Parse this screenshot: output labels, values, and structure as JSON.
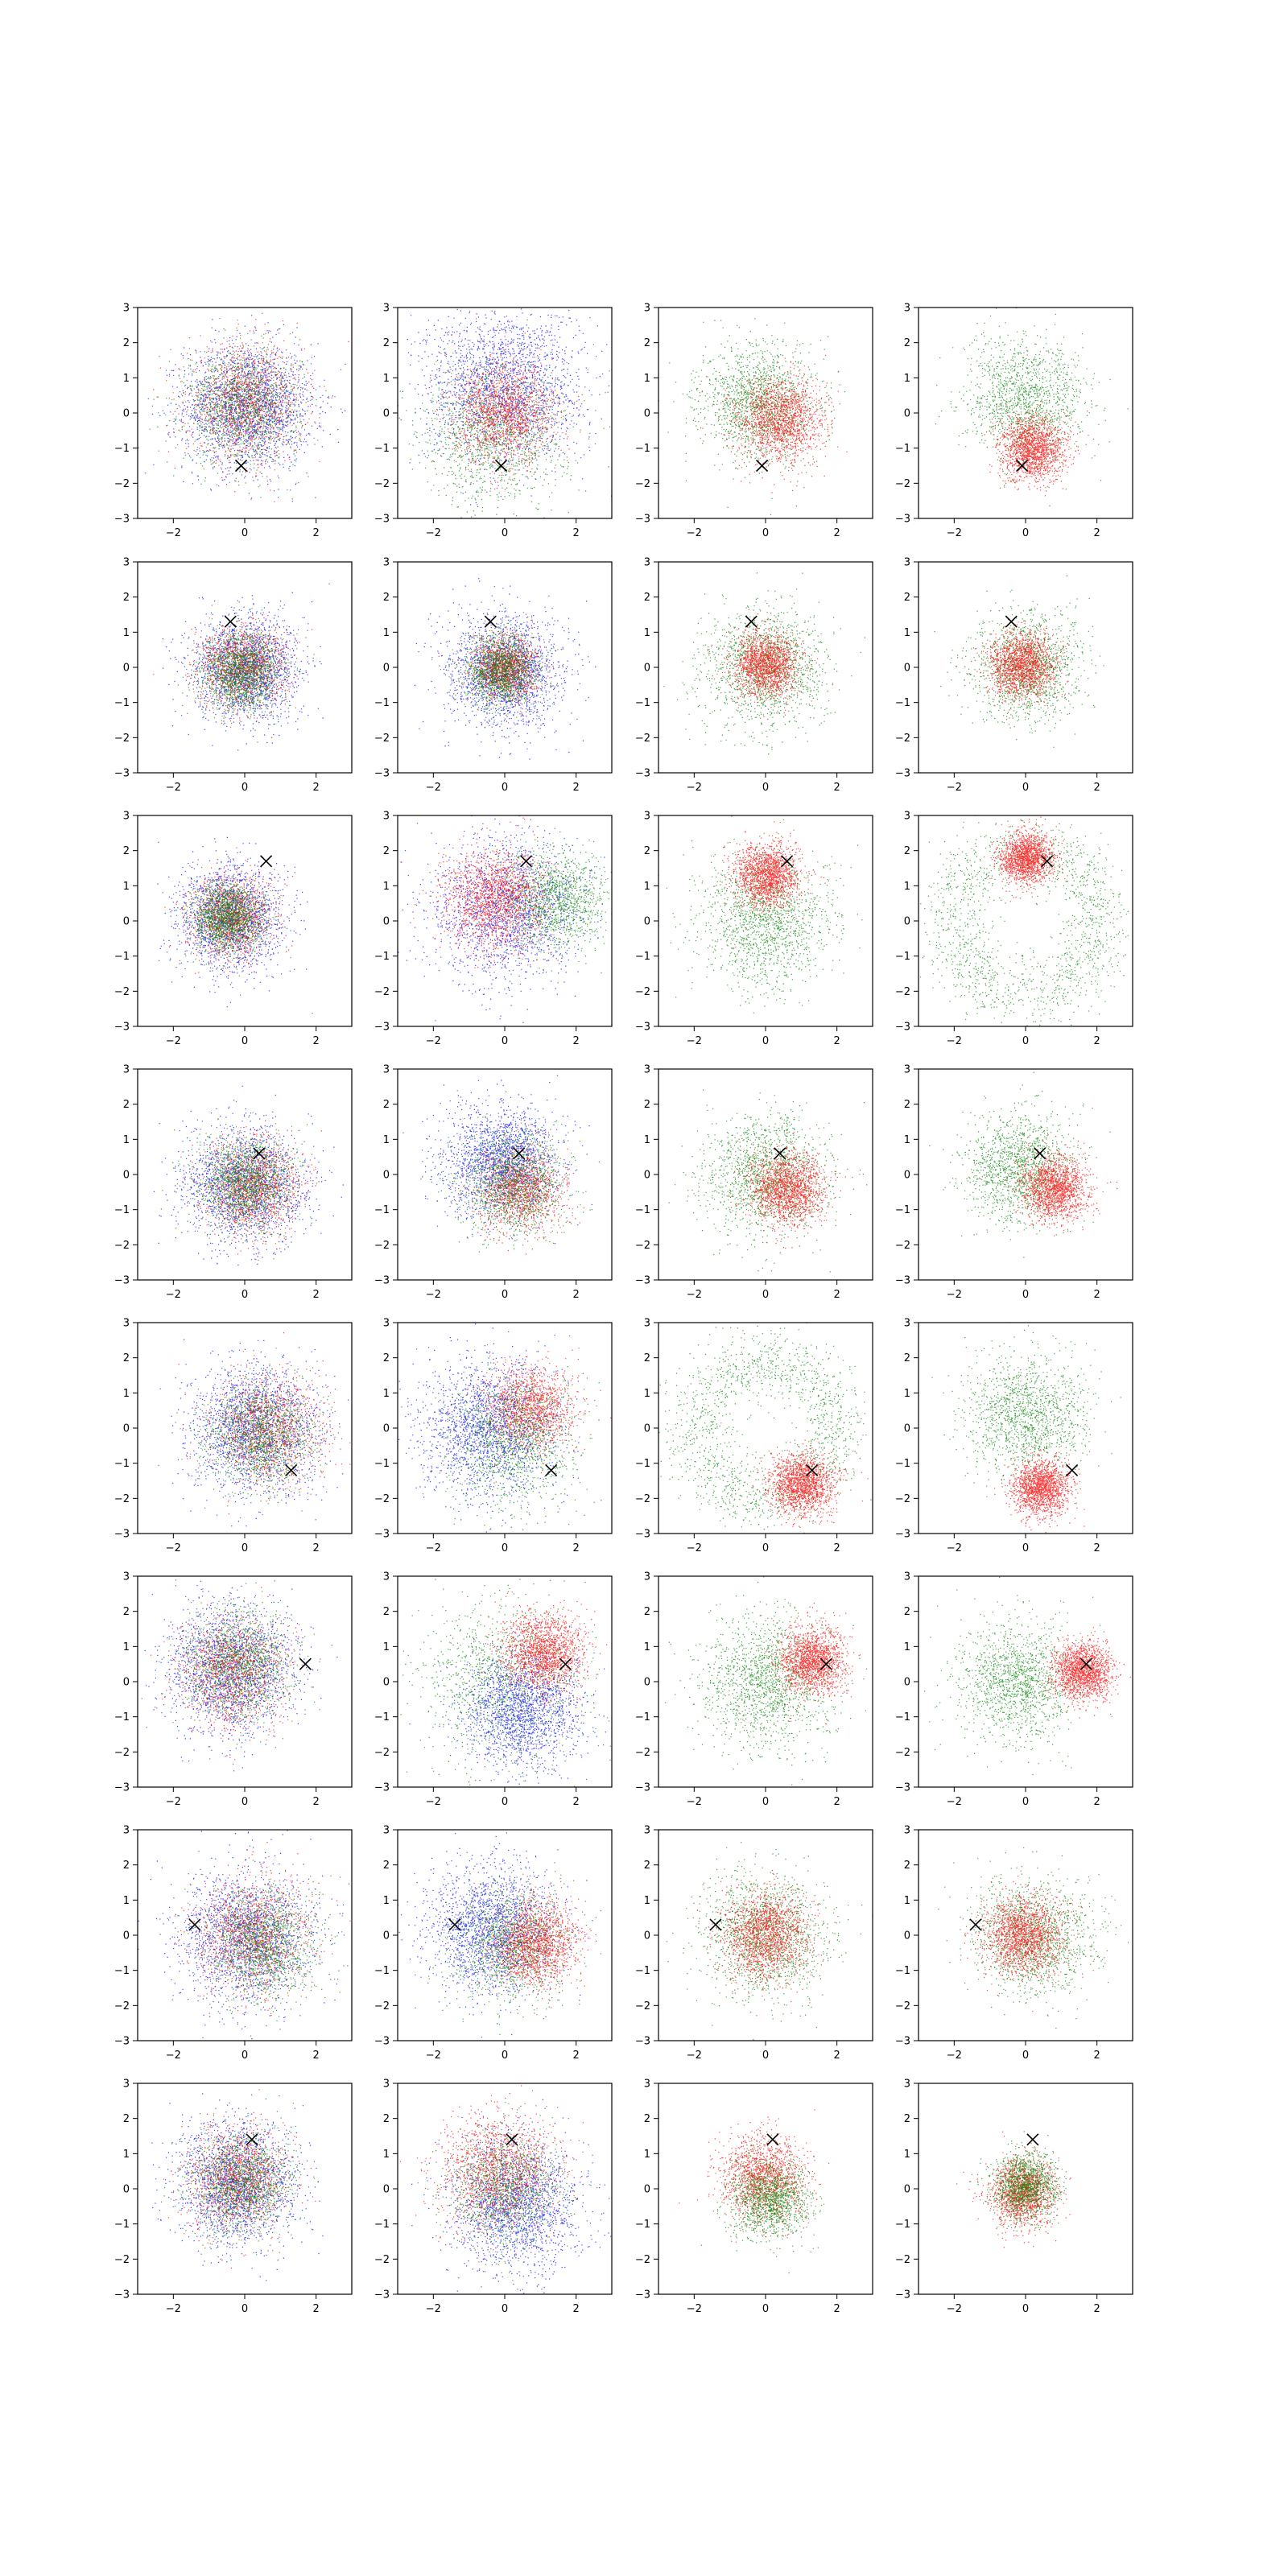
{
  "chart_data": {
    "type": "scatter",
    "layout": {
      "rows": 8,
      "cols": 4
    },
    "xlim": [
      -3,
      3
    ],
    "ylim": [
      -3,
      3
    ],
    "xticks": [
      -2,
      0,
      2
    ],
    "yticks": [
      -3,
      -2,
      -1,
      0,
      1,
      2,
      3
    ],
    "grid": false,
    "legend": "none",
    "colors": {
      "blue": "#0000ff",
      "red": "#ff0000",
      "green": "#008000",
      "marker": "#000000"
    },
    "rows": [
      {
        "marker": [
          -0.1,
          -1.5
        ],
        "panels": [
          {
            "clusters": [
              {
                "color": "blue",
                "cx": 0.1,
                "cy": 0.2,
                "spread": 0.9,
                "n": 2000
              },
              {
                "color": "red",
                "cx": 0.0,
                "cy": 0.3,
                "spread": 0.8,
                "n": 1400
              },
              {
                "color": "green",
                "cx": -0.1,
                "cy": 0.2,
                "spread": 0.8,
                "n": 1400
              }
            ]
          },
          {
            "clusters": [
              {
                "color": "blue",
                "cx": 0.0,
                "cy": 0.8,
                "spread": 1.1,
                "n": 2000
              },
              {
                "color": "green",
                "cx": -0.3,
                "cy": -0.5,
                "spread": 1.0,
                "n": 1400
              },
              {
                "color": "red",
                "cx": 0.0,
                "cy": 0.0,
                "spread": 0.7,
                "n": 1500
              }
            ]
          },
          {
            "clusters": [
              {
                "color": "green",
                "cx": -0.2,
                "cy": 0.3,
                "spread": 0.8,
                "n": 1500
              },
              {
                "color": "red",
                "cx": 0.4,
                "cy": -0.2,
                "spread": 0.6,
                "n": 1600
              }
            ]
          },
          {
            "clusters": [
              {
                "color": "green",
                "cx": 0.0,
                "cy": 0.4,
                "spread": 0.85,
                "n": 1400
              },
              {
                "color": "red",
                "cx": 0.2,
                "cy": -1.0,
                "ring": 0.0,
                "spread": 0.45,
                "n": 1600
              }
            ]
          }
        ]
      },
      {
        "marker": [
          -0.4,
          1.3
        ],
        "panels": [
          {
            "clusters": [
              {
                "color": "blue",
                "cx": 0.0,
                "cy": 0.0,
                "spread": 0.75,
                "n": 1800
              },
              {
                "color": "red",
                "cx": -0.1,
                "cy": 0.0,
                "spread": 0.6,
                "n": 1300
              },
              {
                "color": "green",
                "cx": -0.1,
                "cy": -0.1,
                "spread": 0.55,
                "n": 1600
              }
            ]
          },
          {
            "clusters": [
              {
                "color": "blue",
                "cx": 0.0,
                "cy": -0.1,
                "spread": 0.8,
                "n": 1800
              },
              {
                "color": "red",
                "cx": 0.0,
                "cy": 0.0,
                "spread": 0.45,
                "n": 1300
              },
              {
                "color": "green",
                "cx": -0.1,
                "cy": -0.1,
                "spread": 0.5,
                "n": 1500
              }
            ]
          },
          {
            "clusters": [
              {
                "color": "green",
                "cx": 0.0,
                "cy": 0.0,
                "spread": 0.85,
                "n": 1500
              },
              {
                "color": "red",
                "cx": 0.0,
                "cy": 0.1,
                "spread": 0.45,
                "n": 1600
              }
            ]
          },
          {
            "clusters": [
              {
                "color": "green",
                "cx": 0.0,
                "cy": 0.0,
                "spread": 0.75,
                "n": 1400
              },
              {
                "color": "red",
                "cx": -0.1,
                "cy": 0.1,
                "spread": 0.45,
                "n": 1600
              }
            ]
          }
        ]
      },
      {
        "marker": [
          0.6,
          1.7
        ],
        "panels": [
          {
            "clusters": [
              {
                "color": "blue",
                "cx": -0.4,
                "cy": 0.1,
                "spread": 0.75,
                "n": 1700
              },
              {
                "color": "red",
                "cx": -0.4,
                "cy": 0.1,
                "spread": 0.55,
                "n": 1300
              },
              {
                "color": "green",
                "cx": -0.5,
                "cy": 0.1,
                "spread": 0.5,
                "n": 1600
              }
            ]
          },
          {
            "clusters": [
              {
                "color": "blue",
                "cx": 0.0,
                "cy": 0.3,
                "spread": 1.0,
                "n": 1800
              },
              {
                "color": "green",
                "cx": 1.4,
                "cy": 0.6,
                "spread": 0.7,
                "n": 1300
              },
              {
                "color": "red",
                "cx": -0.3,
                "cy": 0.6,
                "spread": 0.7,
                "n": 1600
              }
            ]
          },
          {
            "clusters": [
              {
                "color": "green",
                "cx": 0.0,
                "cy": 0.0,
                "spread": 0.9,
                "n": 1500
              },
              {
                "color": "red",
                "cx": 0.0,
                "cy": 1.3,
                "spread": 0.45,
                "n": 1600
              }
            ]
          },
          {
            "clusters": [
              {
                "color": "green",
                "cx": 0.0,
                "cy": 0.0,
                "ring": 2.1,
                "spread": 0.5,
                "n": 1500
              },
              {
                "color": "red",
                "cx": 0.0,
                "cy": 1.8,
                "spread": 0.35,
                "n": 1600
              }
            ]
          }
        ]
      },
      {
        "marker": [
          0.4,
          0.6
        ],
        "panels": [
          {
            "clusters": [
              {
                "color": "blue",
                "cx": 0.0,
                "cy": -0.3,
                "spread": 0.85,
                "n": 1800
              },
              {
                "color": "red",
                "cx": 0.2,
                "cy": -0.3,
                "spread": 0.65,
                "n": 1300
              },
              {
                "color": "green",
                "cx": 0.0,
                "cy": -0.2,
                "spread": 0.65,
                "n": 1500
              }
            ]
          },
          {
            "clusters": [
              {
                "color": "blue",
                "cx": -0.1,
                "cy": 0.4,
                "spread": 0.8,
                "n": 1800
              },
              {
                "color": "red",
                "cx": 0.4,
                "cy": -0.4,
                "spread": 0.6,
                "n": 1300
              },
              {
                "color": "green",
                "cx": 0.2,
                "cy": -0.2,
                "spread": 0.75,
                "n": 1400
              }
            ]
          },
          {
            "clusters": [
              {
                "color": "green",
                "cx": 0.0,
                "cy": 0.0,
                "spread": 0.85,
                "n": 1500
              },
              {
                "color": "red",
                "cx": 0.6,
                "cy": -0.4,
                "spread": 0.5,
                "n": 1600
              }
            ]
          },
          {
            "clusters": [
              {
                "color": "green",
                "cx": -0.2,
                "cy": 0.2,
                "spread": 0.75,
                "n": 1400
              },
              {
                "color": "red",
                "cx": 0.8,
                "cy": -0.4,
                "spread": 0.45,
                "n": 1600
              }
            ]
          }
        ]
      },
      {
        "marker": [
          1.3,
          -1.2
        ],
        "panels": [
          {
            "clusters": [
              {
                "color": "blue",
                "cx": 0.3,
                "cy": 0.0,
                "spread": 0.9,
                "n": 1800
              },
              {
                "color": "red",
                "cx": 0.6,
                "cy": 0.0,
                "spread": 0.75,
                "n": 1300
              },
              {
                "color": "green",
                "cx": 0.4,
                "cy": -0.2,
                "spread": 0.75,
                "n": 1400
              }
            ]
          },
          {
            "clusters": [
              {
                "color": "blue",
                "cx": -0.5,
                "cy": 0.0,
                "spread": 0.95,
                "n": 1800
              },
              {
                "color": "red",
                "cx": 0.7,
                "cy": 0.6,
                "spread": 0.6,
                "n": 1400
              },
              {
                "color": "green",
                "cx": 0.2,
                "cy": -0.3,
                "spread": 0.9,
                "n": 1300
              }
            ]
          },
          {
            "clusters": [
              {
                "color": "green",
                "cx": 0.0,
                "cy": 0.0,
                "ring": 2.0,
                "spread": 0.5,
                "n": 1500
              },
              {
                "color": "red",
                "cx": 1.0,
                "cy": -1.6,
                "spread": 0.45,
                "n": 1600
              }
            ]
          },
          {
            "clusters": [
              {
                "color": "green",
                "cx": 0.0,
                "cy": 0.4,
                "spread": 0.85,
                "n": 1400
              },
              {
                "color": "red",
                "cx": 0.4,
                "cy": -1.7,
                "spread": 0.4,
                "n": 1600
              }
            ]
          }
        ]
      },
      {
        "marker": [
          1.7,
          0.5
        ],
        "panels": [
          {
            "clusters": [
              {
                "color": "blue",
                "cx": -0.4,
                "cy": 0.4,
                "spread": 0.9,
                "n": 1800
              },
              {
                "color": "red",
                "cx": -0.3,
                "cy": 0.3,
                "spread": 0.75,
                "n": 1300
              },
              {
                "color": "green",
                "cx": -0.2,
                "cy": 0.5,
                "spread": 0.75,
                "n": 1400
              }
            ]
          },
          {
            "clusters": [
              {
                "color": "green",
                "cx": 0.0,
                "cy": 0.0,
                "spread": 1.1,
                "n": 1300
              },
              {
                "color": "blue",
                "cx": 0.5,
                "cy": -0.8,
                "spread": 0.8,
                "n": 1700
              },
              {
                "color": "red",
                "cx": 1.1,
                "cy": 0.9,
                "spread": 0.55,
                "n": 1600
              }
            ]
          },
          {
            "clusters": [
              {
                "color": "green",
                "cx": 0.0,
                "cy": 0.0,
                "spread": 0.9,
                "n": 1500
              },
              {
                "color": "red",
                "cx": 1.3,
                "cy": 0.6,
                "spread": 0.45,
                "n": 1600
              }
            ]
          },
          {
            "clusters": [
              {
                "color": "green",
                "cx": -0.2,
                "cy": 0.0,
                "spread": 0.85,
                "n": 1400
              },
              {
                "color": "red",
                "cx": 1.6,
                "cy": 0.3,
                "spread": 0.4,
                "n": 1600
              }
            ]
          }
        ]
      },
      {
        "marker": [
          -1.4,
          0.3
        ],
        "panels": [
          {
            "clusters": [
              {
                "color": "blue",
                "cx": 0.0,
                "cy": 0.0,
                "spread": 0.95,
                "n": 1800
              },
              {
                "color": "red",
                "cx": 0.2,
                "cy": 0.0,
                "spread": 0.8,
                "n": 1300
              },
              {
                "color": "green",
                "cx": 0.5,
                "cy": -0.2,
                "spread": 0.75,
                "n": 1400
              }
            ]
          },
          {
            "clusters": [
              {
                "color": "blue",
                "cx": -0.4,
                "cy": 0.2,
                "spread": 0.9,
                "n": 1800
              },
              {
                "color": "green",
                "cx": 0.2,
                "cy": -0.2,
                "spread": 0.8,
                "n": 1300
              },
              {
                "color": "red",
                "cx": 0.8,
                "cy": -0.2,
                "spread": 0.6,
                "n": 1500
              }
            ]
          },
          {
            "clusters": [
              {
                "color": "green",
                "cx": 0.0,
                "cy": 0.0,
                "spread": 0.85,
                "n": 1500
              },
              {
                "color": "red",
                "cx": 0.0,
                "cy": 0.0,
                "spread": 0.6,
                "n": 1600
              }
            ]
          },
          {
            "clusters": [
              {
                "color": "green",
                "cx": 0.2,
                "cy": 0.0,
                "spread": 0.85,
                "n": 1400
              },
              {
                "color": "red",
                "cx": -0.1,
                "cy": 0.0,
                "spread": 0.55,
                "n": 1600
              }
            ]
          }
        ]
      },
      {
        "marker": [
          0.2,
          1.4
        ],
        "panels": [
          {
            "clusters": [
              {
                "color": "blue",
                "cx": -0.2,
                "cy": 0.2,
                "spread": 0.85,
                "n": 1800
              },
              {
                "color": "red",
                "cx": -0.2,
                "cy": 0.3,
                "spread": 0.7,
                "n": 1300
              },
              {
                "color": "green",
                "cx": -0.1,
                "cy": 0.2,
                "spread": 0.7,
                "n": 1400
              }
            ]
          },
          {
            "clusters": [
              {
                "color": "blue",
                "cx": 0.3,
                "cy": -0.5,
                "spread": 0.9,
                "n": 1800
              },
              {
                "color": "red",
                "cx": -0.2,
                "cy": 0.5,
                "spread": 0.8,
                "n": 1500
              },
              {
                "color": "green",
                "cx": 0.0,
                "cy": 0.0,
                "spread": 0.8,
                "n": 1200
              }
            ]
          },
          {
            "clusters": [
              {
                "color": "red",
                "cx": -0.1,
                "cy": 0.3,
                "spread": 0.6,
                "n": 1500
              },
              {
                "color": "green",
                "cx": 0.1,
                "cy": -0.3,
                "spread": 0.55,
                "n": 1400
              }
            ]
          },
          {
            "clusters": [
              {
                "color": "red",
                "cx": -0.1,
                "cy": -0.1,
                "spread": 0.45,
                "n": 1500
              },
              {
                "color": "green",
                "cx": 0.0,
                "cy": 0.1,
                "spread": 0.45,
                "n": 1400
              }
            ]
          }
        ]
      }
    ]
  }
}
